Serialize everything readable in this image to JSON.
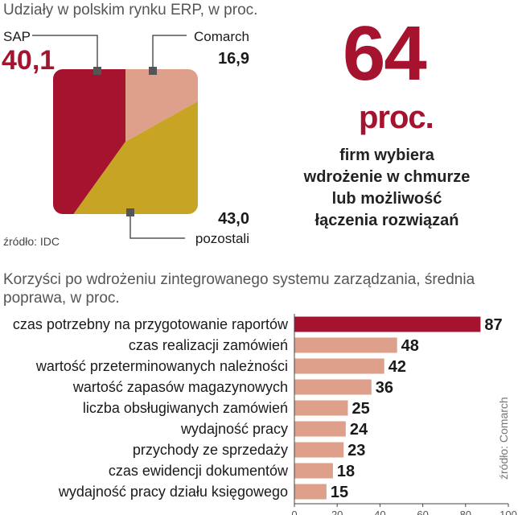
{
  "chart_data": [
    {
      "type": "pie",
      "title": "Udziały w  polskim rynku ERP, w proc.",
      "source": "źródło: IDC",
      "slices": [
        {
          "name": "SAP",
          "value": 40.1,
          "label": "40,1",
          "color": "#a5132e"
        },
        {
          "name": "Comarch",
          "value": 16.9,
          "label": "16,9",
          "color": "#dea08a"
        },
        {
          "name": "pozostali",
          "value": 43.0,
          "label": "43,0",
          "color": "#c8a424"
        }
      ]
    },
    {
      "type": "bar",
      "orientation": "horizontal",
      "title": "Korzyści po wdrożeniu zintegrowanego systemu zarządzania, średnia poprawa, w proc.",
      "source": "źródło: Comarch",
      "categories": [
        "czas potrzebny na przygotowanie raportów",
        "czas realizacji zamówień",
        "wartość przeterminowanych należności",
        "wartość zapasów magazynowych",
        "liczba obsługiwanych zamówień",
        "wydajność pracy",
        "przychody ze sprzedaży",
        "czas ewidencji dokumentów",
        "wydajność pracy działu księgowego"
      ],
      "values": [
        87,
        48,
        42,
        36,
        25,
        24,
        23,
        18,
        15
      ],
      "colors": [
        "#a5132e",
        "#dea08a",
        "#dea08a",
        "#dea08a",
        "#dea08a",
        "#dea08a",
        "#dea08a",
        "#dea08a",
        "#dea08a"
      ],
      "xlim": [
        0,
        100
      ],
      "xticks": [
        0,
        20,
        40,
        60,
        80,
        100
      ],
      "grid": false
    }
  ],
  "fact": {
    "number": "64",
    "unit": "proc.",
    "text_lines": [
      "firm wybiera",
      "wdrożenie w chmurze",
      "lub możliwość",
      "łączenia rozwiązań"
    ]
  }
}
